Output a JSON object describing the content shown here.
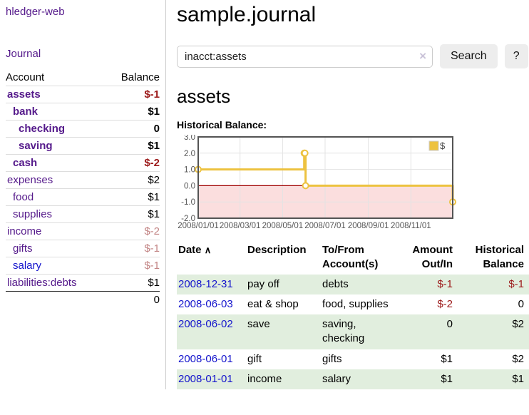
{
  "colors": {
    "link_purple": "#551a8b",
    "link_blue": "#1414cc",
    "negative_strong": "#9c1a1a",
    "negative_muted": "#c28484",
    "row_stripe_green": "#e1eede",
    "chart_line": "#edc240",
    "chart_negative_fill": "#fbdede",
    "chart_zero_line": "#a00000",
    "chart_grid": "#e3e3e3",
    "chart_border": "#545454",
    "chart_text": "#545454"
  },
  "sidebar": {
    "app_title": "hledger-web",
    "journal_link": "Journal",
    "accounts_table": {
      "headers": {
        "account": "Account",
        "balance": "Balance"
      },
      "rows": [
        {
          "name": "assets",
          "indent": 1,
          "bold": true,
          "name_color": "purple",
          "balance": "$-1",
          "balance_style": "neg_strong"
        },
        {
          "name": "bank",
          "indent": 2,
          "bold": true,
          "name_color": "purple",
          "balance": "$1",
          "balance_style": "plain"
        },
        {
          "name": "checking",
          "indent": 3,
          "bold": true,
          "name_color": "purple",
          "balance": "0",
          "balance_style": "plain"
        },
        {
          "name": "saving",
          "indent": 3,
          "bold": true,
          "name_color": "purple",
          "balance": "$1",
          "balance_style": "plain"
        },
        {
          "name": "cash",
          "indent": 2,
          "bold": true,
          "name_color": "purple",
          "balance": "$-2",
          "balance_style": "neg_strong"
        },
        {
          "name": "expenses",
          "indent": 1,
          "bold": false,
          "name_color": "purple",
          "balance": "$2",
          "balance_style": "plain"
        },
        {
          "name": "food",
          "indent": 2,
          "bold": false,
          "name_color": "purple",
          "balance": "$1",
          "balance_style": "plain"
        },
        {
          "name": "supplies",
          "indent": 2,
          "bold": false,
          "name_color": "purple",
          "balance": "$1",
          "balance_style": "plain"
        },
        {
          "name": "income",
          "indent": 1,
          "bold": false,
          "name_color": "purple",
          "balance": "$-2",
          "balance_style": "neg_muted"
        },
        {
          "name": "gifts",
          "indent": 2,
          "bold": false,
          "name_color": "purple",
          "balance": "$-1",
          "balance_style": "neg_muted"
        },
        {
          "name": "salary",
          "indent": 2,
          "bold": false,
          "name_color": "blue",
          "balance": "$-1",
          "balance_style": "neg_muted"
        },
        {
          "name": "liabilities:debts",
          "indent": 1,
          "bold": false,
          "name_color": "purple",
          "balance": "$1",
          "balance_style": "plain"
        }
      ],
      "total": "0"
    }
  },
  "main": {
    "title": "sample.journal",
    "search": {
      "value": "inacct:assets",
      "clear_icon": "×",
      "search_button": "Search",
      "help_button": "?"
    },
    "account_heading": "assets",
    "chart_label": "Historical Balance:"
  },
  "chart_data": {
    "type": "line",
    "step": true,
    "title": "Historical Balance:",
    "series": [
      {
        "name": "$",
        "color": "#edc240",
        "points": [
          [
            "2008-01-01",
            1
          ],
          [
            "2008-06-01",
            2
          ],
          [
            "2008-06-02",
            2
          ],
          [
            "2008-06-03",
            0
          ],
          [
            "2008-12-31",
            -1
          ]
        ]
      }
    ],
    "x_ticks": [
      "2008/01/01",
      "2008/03/01",
      "2008/05/01",
      "2008/07/01",
      "2008/09/01",
      "2008/11/01"
    ],
    "y_ticks": [
      3.0,
      2.0,
      1.0,
      0.0,
      -1.0,
      -2.0
    ],
    "ylim": [
      -2,
      3
    ],
    "x_range_dates": [
      "2008-01-01",
      "2008-12-31"
    ],
    "legend": {
      "label": "$",
      "position": "top-right"
    },
    "grid": true,
    "negative_region_shaded": true
  },
  "register": {
    "headers": [
      "Date",
      "Description",
      "To/From Account(s)",
      "Amount Out/In",
      "Historical Balance"
    ],
    "sort_icon": "∧",
    "rows": [
      {
        "date": "2008-12-31",
        "description": "pay off",
        "accounts": "debts",
        "amount": "$-1",
        "amount_negative": true,
        "balance": "$-1",
        "balance_negative": true
      },
      {
        "date": "2008-06-03",
        "description": "eat & shop",
        "accounts": "food, supplies",
        "amount": "$-2",
        "amount_negative": true,
        "balance": "0",
        "balance_negative": false
      },
      {
        "date": "2008-06-02",
        "description": "save",
        "accounts": "saving, checking",
        "amount": "0",
        "amount_negative": false,
        "balance": "$2",
        "balance_negative": false
      },
      {
        "date": "2008-06-01",
        "description": "gift",
        "accounts": "gifts",
        "amount": "$1",
        "amount_negative": false,
        "balance": "$2",
        "balance_negative": false
      },
      {
        "date": "2008-01-01",
        "description": "income",
        "accounts": "salary",
        "amount": "$1",
        "amount_negative": false,
        "balance": "$1",
        "balance_negative": false
      }
    ]
  }
}
